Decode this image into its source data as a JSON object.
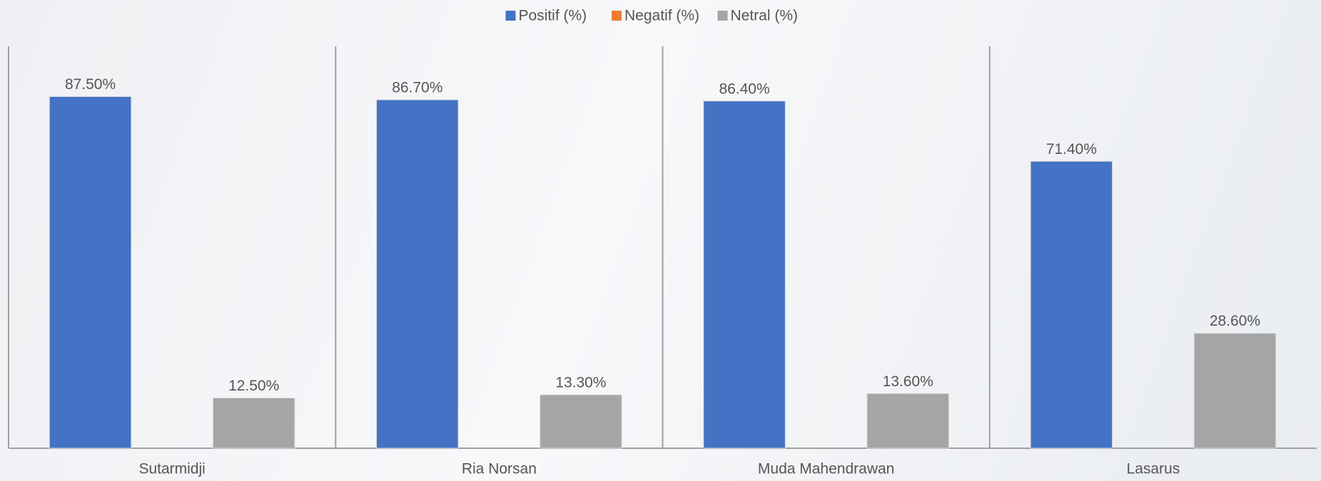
{
  "chart_data": {
    "type": "bar",
    "categories": [
      "Sutarmidji",
      "Ria Norsan",
      "Muda Mahendrawan",
      "Lasarus"
    ],
    "series": [
      {
        "name": "Positif (%)",
        "color": "#4472c4",
        "values": [
          87.5,
          86.7,
          86.4,
          71.4
        ],
        "value_labels": [
          "87.50%",
          "86.70%",
          "86.40%",
          "71.40%"
        ]
      },
      {
        "name": "Negatif (%)",
        "color": "#ed7d31",
        "values": [
          0,
          0,
          0,
          0
        ]
      },
      {
        "name": "Netral (%)",
        "color": "#a5a5a5",
        "values": [
          12.5,
          13.3,
          13.6,
          28.6
        ],
        "value_labels": [
          "12.50%",
          "13.30%",
          "13.60%",
          "28.60%"
        ]
      }
    ],
    "ylim": [
      0,
      100
    ],
    "legend": "top"
  }
}
